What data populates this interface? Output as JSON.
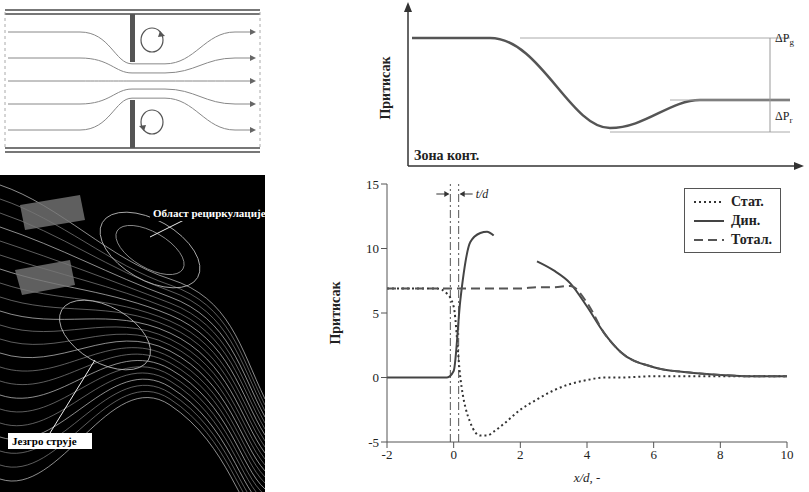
{
  "chart_data": {
    "type": "line",
    "y_label": "Притисак",
    "x_label": "x/d, -",
    "x": [
      -2,
      -1.5,
      -1,
      -0.5,
      -0.2,
      0,
      0.2,
      0.5,
      0.8,
      1,
      1.2,
      1.5,
      2,
      2.5,
      3,
      3.5,
      4,
      4.5,
      5,
      6,
      7,
      8,
      9,
      10
    ],
    "series": [
      {
        "name": "Стат.",
        "color": "#333333",
        "line_style": "dotted",
        "values": [
          6.9,
          6.9,
          6.9,
          6.9,
          6.5,
          5.5,
          0,
          -3.5,
          -4.5,
          -4.5,
          -4.2,
          -3.6,
          -2.5,
          -1.7,
          -1,
          -0.5,
          -0.2,
          0,
          0,
          0.1,
          0.1,
          0.1,
          0.1,
          0.1
        ]
      },
      {
        "name": "Дин.",
        "color": "#444444",
        "line_style": "solid",
        "values": [
          0,
          0,
          0,
          0,
          0,
          0.5,
          6,
          10.5,
          11.2,
          11.3,
          11,
          null,
          null,
          9,
          8.3,
          7.3,
          5.5,
          3.5,
          2,
          0.8,
          0.4,
          0.2,
          0.1,
          0.1
        ]
      },
      {
        "name": "Тотал.",
        "color": "#555555",
        "line_style": "dashed",
        "values": [
          6.9,
          6.9,
          6.9,
          6.9,
          6.9,
          6.9,
          6.9,
          6.9,
          6.9,
          6.9,
          6.9,
          6.9,
          6.9,
          7,
          7,
          7.1,
          5.8,
          3.5,
          2,
          0.8,
          0.4,
          0.2,
          0.1,
          0.1
        ]
      }
    ],
    "xlim": [
      -2,
      10
    ],
    "xticks": [
      -2,
      0,
      2,
      4,
      6,
      8,
      10
    ],
    "ylim": [
      -5,
      15
    ],
    "yticks": [
      -5,
      0,
      5,
      10,
      15
    ],
    "legend": "top-right",
    "annotation": {
      "text": "t/d",
      "x": [
        -0.1,
        0.15
      ]
    }
  },
  "diagrams": {
    "pressure_sketch": {
      "y_label": "Притисак",
      "zone_label": "Зона конт.",
      "brackets": [
        {
          "symbol": "ΔP",
          "subscript": "g"
        },
        {
          "symbol": "ΔP",
          "subscript": "r"
        }
      ]
    },
    "flow_image": {
      "labels": [
        "Област рециркулације",
        "Језгро струје"
      ]
    }
  }
}
